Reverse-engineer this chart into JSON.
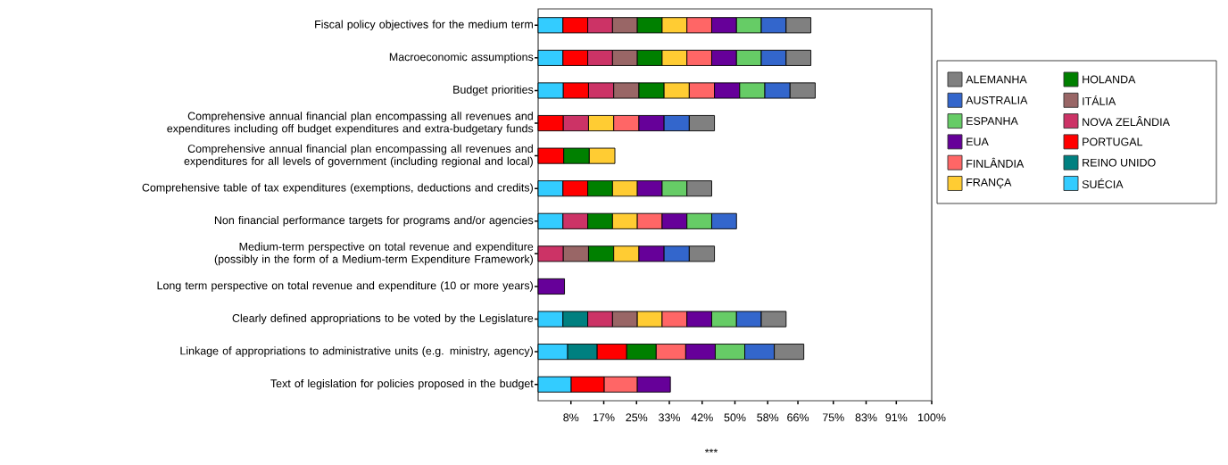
{
  "chart_data": {
    "type": "bar",
    "orientation": "horizontal",
    "stacked": true,
    "legend": "right",
    "categories": [
      "Fiscal policy objectives for the medium term",
      "Macroeconomic assumptions",
      "Budget priorities",
      "Comprehensive annual financial plan encompassing all revenues and expenditures including off budget expenditures and extra-budgetary funds",
      "Comprehensive annual financial plan encompassing all revenues and expenditures for all levels of government (including regional and local)",
      "Comprehensive table of tax expenditures (exemptions, deductions and credits)",
      "Non financial performance targets for programs and/or agencies",
      "Medium-term perspective on total revenue and expenditure (possibly in the form of a Medium-term Expenditure Framework)",
      "Long term perspective on total revenue and expenditure (10 or more years)",
      "Clearly defined appropriations to be voted by the Legislature",
      "Linkage of appropriations to administrative units (e.g. ministry, agency)",
      "Text of legislation for policies proposed in the budget"
    ],
    "series": [
      {
        "name": "SUÉCIA",
        "color": "#33ccff",
        "values": [
          6.3,
          6.3,
          6.4,
          null,
          null,
          6.3,
          6.3,
          null,
          null,
          6.3,
          7.5,
          8.4
        ]
      },
      {
        "name": "REINO UNIDO",
        "color": "#008080",
        "values": [
          null,
          null,
          null,
          null,
          null,
          null,
          null,
          null,
          null,
          6.3,
          7.5,
          null
        ]
      },
      {
        "name": "PORTUGAL",
        "color": "#ff0000",
        "values": [
          6.3,
          6.3,
          6.4,
          6.4,
          6.5,
          6.3,
          null,
          null,
          null,
          null,
          7.5,
          8.4
        ]
      },
      {
        "name": "NOVA ZELÂNDIA",
        "color": "#cc3366",
        "values": [
          6.3,
          6.3,
          6.4,
          6.4,
          null,
          null,
          6.3,
          6.4,
          null,
          6.3,
          null,
          null
        ]
      },
      {
        "name": "ITÁLIA",
        "color": "#996666",
        "values": [
          6.3,
          6.3,
          6.4,
          null,
          null,
          null,
          null,
          6.4,
          null,
          6.3,
          null,
          null
        ]
      },
      {
        "name": "HOLANDA",
        "color": "#008000",
        "values": [
          6.3,
          6.3,
          6.4,
          null,
          6.5,
          6.3,
          6.3,
          6.4,
          null,
          null,
          7.5,
          null
        ]
      },
      {
        "name": "FRANÇA",
        "color": "#ffcc33",
        "values": [
          6.3,
          6.3,
          6.4,
          6.4,
          6.5,
          6.3,
          6.3,
          6.4,
          null,
          6.3,
          null,
          null
        ]
      },
      {
        "name": "FINLÂNDIA",
        "color": "#ff6666",
        "values": [
          6.3,
          6.3,
          6.4,
          6.4,
          null,
          null,
          6.3,
          null,
          null,
          6.3,
          7.5,
          8.4
        ]
      },
      {
        "name": "EUA",
        "color": "#660099",
        "values": [
          6.3,
          6.3,
          6.4,
          6.4,
          null,
          6.3,
          6.3,
          6.4,
          6.7,
          6.3,
          7.5,
          8.4
        ]
      },
      {
        "name": "ESPANHA",
        "color": "#66cc66",
        "values": [
          6.3,
          6.3,
          6.4,
          null,
          null,
          6.3,
          6.3,
          null,
          null,
          6.3,
          7.5,
          null
        ]
      },
      {
        "name": "AUSTRALIA",
        "color": "#3366cc",
        "values": [
          6.3,
          6.3,
          6.4,
          6.4,
          null,
          null,
          6.3,
          6.4,
          null,
          6.3,
          7.5,
          null
        ]
      },
      {
        "name": "ALEMANHA",
        "color": "#808080",
        "values": [
          6.3,
          6.3,
          6.4,
          6.4,
          null,
          6.3,
          null,
          6.4,
          null,
          6.3,
          7.5,
          null
        ]
      }
    ],
    "xlim": [
      0,
      100
    ],
    "xticks": [
      {
        "value": 8.33,
        "label": "8%"
      },
      {
        "value": 16.67,
        "label": "17%"
      },
      {
        "value": 25,
        "label": "25%"
      },
      {
        "value": 33.33,
        "label": "33%"
      },
      {
        "value": 41.67,
        "label": "42%"
      },
      {
        "value": 50,
        "label": "50%"
      },
      {
        "value": 58.33,
        "label": "58%"
      },
      {
        "value": 66,
        "label": "66%"
      },
      {
        "value": 75,
        "label": "75%"
      },
      {
        "value": 83.33,
        "label": "83%"
      },
      {
        "value": 91,
        "label": "91%"
      },
      {
        "value": 100,
        "label": "100%"
      }
    ],
    "annotations": [
      "***"
    ]
  }
}
